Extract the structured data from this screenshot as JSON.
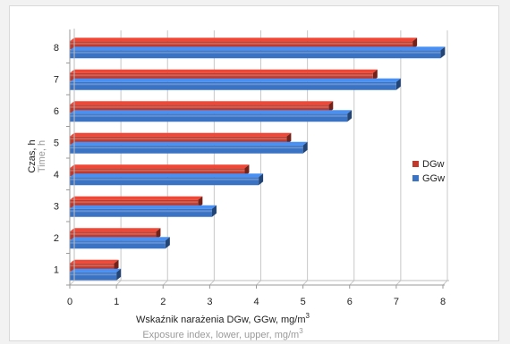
{
  "chart_data": {
    "type": "bar",
    "orientation": "horizontal",
    "categories": [
      "1",
      "2",
      "3",
      "4",
      "5",
      "6",
      "7",
      "8"
    ],
    "series": [
      {
        "name": "DGw",
        "color": "#c0392b",
        "values": [
          0.95,
          1.85,
          2.75,
          3.75,
          4.65,
          5.55,
          6.5,
          7.35
        ]
      },
      {
        "name": "GGw",
        "color": "#3a73c4",
        "values": [
          1.0,
          2.05,
          3.05,
          4.05,
          5.0,
          5.95,
          7.0,
          7.95
        ]
      }
    ],
    "xlim": [
      0,
      8
    ],
    "x_ticks": [
      "0",
      "1",
      "2",
      "3",
      "4",
      "5",
      "6",
      "7",
      "8"
    ],
    "xlabel": "Wskaźnik narażenia DGw, GGw, mg/m",
    "xlabel_secondary": "Exposure index, lower, upper, mg/m",
    "xlabel_superscript": "3",
    "ylabel": "Czas, h",
    "ylabel_secondary": "Time, h",
    "legend_position": "right",
    "grid": true
  }
}
